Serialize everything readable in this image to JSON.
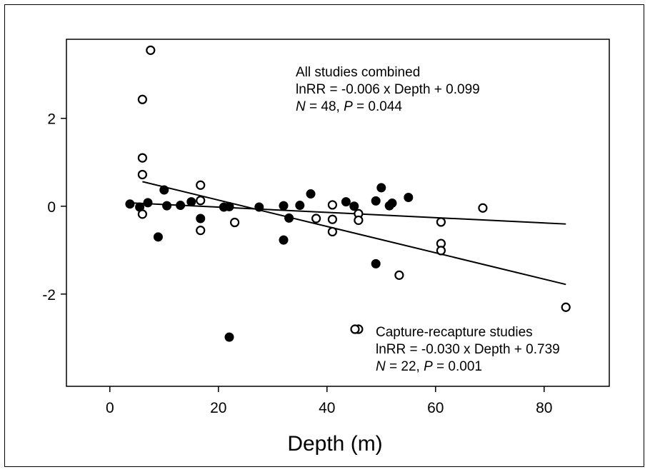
{
  "chart_data": {
    "type": "scatter",
    "title": "",
    "xlabel": "Depth (m)",
    "ylabel": "",
    "xlim": [
      -8,
      92
    ],
    "ylim": [
      -4.1,
      3.8
    ],
    "xticks": [
      0,
      20,
      40,
      60,
      80
    ],
    "yticks": [
      -2,
      0,
      2
    ],
    "xtick_labels": [
      "0",
      "20",
      "40",
      "60",
      "80"
    ],
    "ytick_labels": [
      "-2",
      "0",
      "2"
    ],
    "grid": false,
    "series": [
      {
        "marker": "filled-circle",
        "color": "#000000",
        "points": [
          [
            3.7,
            0.05
          ],
          [
            5.5,
            -0.02
          ],
          [
            7,
            0.08
          ],
          [
            8.9,
            -0.7
          ],
          [
            10,
            0.37
          ],
          [
            10.5,
            0.01
          ],
          [
            13,
            0.02
          ],
          [
            15,
            0.1
          ],
          [
            16.7,
            -0.28
          ],
          [
            21,
            -0.02
          ],
          [
            22,
            -0.01
          ],
          [
            22,
            -2.98
          ],
          [
            27.5,
            -0.02
          ],
          [
            32,
            0.01
          ],
          [
            32,
            -0.77
          ],
          [
            33,
            -0.27
          ],
          [
            35,
            0.02
          ],
          [
            37,
            0.28
          ],
          [
            43.5,
            0.1
          ],
          [
            45,
            0.0
          ],
          [
            49,
            0.12
          ],
          [
            49,
            -1.31
          ],
          [
            50,
            0.42
          ],
          [
            51.5,
            0.01
          ],
          [
            52,
            0.07
          ],
          [
            55,
            0.2
          ]
        ]
      },
      {
        "marker": "open-circle",
        "color": "#000000",
        "points": [
          [
            7.5,
            3.55
          ],
          [
            6,
            2.43
          ],
          [
            6,
            1.1
          ],
          [
            6,
            0.72
          ],
          [
            6,
            -0.18
          ],
          [
            16.7,
            0.48
          ],
          [
            16.7,
            0.13
          ],
          [
            16.7,
            -0.55
          ],
          [
            23,
            -0.37
          ],
          [
            38,
            -0.28
          ],
          [
            41,
            0.03
          ],
          [
            41,
            -0.3
          ],
          [
            41,
            -0.58
          ],
          [
            45.8,
            -0.17
          ],
          [
            45.8,
            -0.32
          ],
          [
            45.8,
            -2.8
          ],
          [
            53.3,
            -1.57
          ],
          [
            61,
            -0.36
          ],
          [
            61,
            -0.85
          ],
          [
            61,
            -1.01
          ],
          [
            68.7,
            -0.04
          ],
          [
            84,
            -2.3
          ]
        ]
      }
    ],
    "regression_lines": [
      {
        "x": [
          3.5,
          84
        ],
        "y": [
          0.078,
          -0.405
        ]
      },
      {
        "x": [
          6,
          84
        ],
        "y": [
          0.559,
          -1.781
        ]
      }
    ],
    "annotations": [
      {
        "lines": [
          {
            "parts": [
              {
                "text": "All studies combined",
                "italic": false
              }
            ]
          },
          {
            "parts": [
              {
                "text": "lnRR =  -0.006 x Depth + 0.099",
                "italic": false
              }
            ]
          },
          {
            "parts": [
              {
                "text": "N",
                "italic": true
              },
              {
                "text": " = 48, ",
                "italic": false
              },
              {
                "text": "P",
                "italic": true
              },
              {
                "text": " = 0.044",
                "italic": false
              }
            ]
          }
        ]
      },
      {
        "legend_marker": "open-circle",
        "lines": [
          {
            "parts": [
              {
                "text": "Capture-recapture studies",
                "italic": false
              }
            ]
          },
          {
            "parts": [
              {
                "text": "lnRR =  -0.030 x Depth + 0.739",
                "italic": false
              }
            ]
          },
          {
            "parts": [
              {
                "text": "N",
                "italic": true
              },
              {
                "text": " = 22, ",
                "italic": false
              },
              {
                "text": "P",
                "italic": true
              },
              {
                "text": " = 0.001",
                "italic": false
              }
            ]
          }
        ]
      }
    ]
  }
}
